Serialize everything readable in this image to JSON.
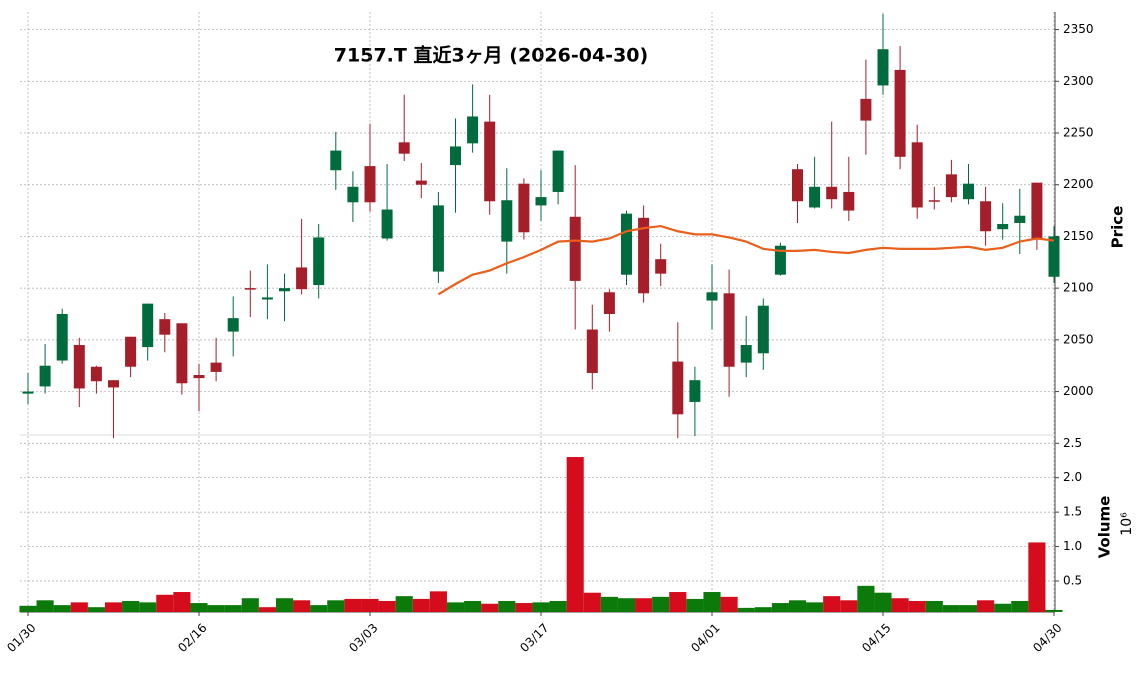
{
  "chart_data": {
    "type": "candlestick",
    "title": "7157.T  直近3ヶ月  (2026-04-30)",
    "ylabel": "Price",
    "volume_label": "Volume",
    "volume_offset": "10⁶",
    "categories": [
      "01/30",
      null,
      null,
      null,
      null,
      null,
      null,
      null,
      null,
      null,
      "02/16",
      null,
      null,
      null,
      null,
      null,
      null,
      null,
      null,
      null,
      "03/03",
      null,
      null,
      null,
      null,
      null,
      null,
      null,
      null,
      null,
      "03/17",
      null,
      null,
      null,
      null,
      null,
      null,
      null,
      null,
      null,
      "04/01",
      null,
      null,
      null,
      null,
      null,
      null,
      null,
      null,
      null,
      "04/15",
      null,
      null,
      null,
      null,
      null,
      null,
      null,
      null,
      null,
      "04/30"
    ],
    "open": [
      1998,
      2005,
      2030,
      2045,
      2024,
      2011,
      2053,
      2043,
      2070,
      2066,
      2016,
      2028,
      2058,
      2100,
      2089,
      2097,
      2120,
      2103,
      2214,
      2183,
      2218,
      2148,
      2241,
      2204,
      2116,
      2219,
      2240,
      2261,
      2145,
      2201,
      2180,
      2193,
      2169,
      2060,
      2096,
      2113,
      2168,
      2128,
      2029,
      1990,
      2088,
      2095,
      2028,
      2037,
      2113,
      2215,
      2178,
      2198,
      2193,
      2283,
      2296,
      2311,
      2241,
      2185,
      2210,
      2186,
      2184,
      2157,
      2163,
      2202,
      2111
    ],
    "high": [
      2018,
      2046,
      2080,
      2052,
      2025,
      2011,
      2053,
      2085,
      2076,
      2066,
      2027,
      2052,
      2092,
      2117,
      2123,
      2114,
      2167,
      2162,
      2251,
      2213,
      2259,
      2220,
      2287,
      2221,
      2193,
      2264,
      2297,
      2287,
      2216,
      2206,
      2214,
      2233,
      2219,
      2084,
      2099,
      2175,
      2180,
      2143,
      2067,
      2024,
      2123,
      2118,
      2073,
      2090,
      2144,
      2220,
      2227,
      2261,
      2227,
      2321,
      2365,
      2334,
      2258,
      2198,
      2224,
      2220,
      2198,
      2182,
      2196,
      2202,
      2160
    ],
    "low": [
      1988,
      1998,
      2027,
      1985,
      1998,
      1955,
      2014,
      2030,
      2038,
      1997,
      1981,
      2010,
      2034,
      2072,
      2070,
      2068,
      2094,
      2090,
      2195,
      2164,
      2174,
      2146,
      2223,
      2187,
      2105,
      2173,
      2231,
      2171,
      2114,
      2147,
      2165,
      2181,
      2060,
      2002,
      2058,
      2103,
      2086,
      2102,
      1955,
      1957,
      2060,
      1995,
      2014,
      2021,
      2112,
      2163,
      2177,
      2177,
      2165,
      2229,
      2287,
      2215,
      2167,
      2176,
      2183,
      2181,
      2141,
      2147,
      2133,
      2137,
      2105
    ],
    "close": [
      2000,
      2025,
      2075,
      2003,
      2010,
      2004,
      2024,
      2085,
      2055,
      2008,
      2013,
      2019,
      2071,
      2100,
      2091,
      2100,
      2099,
      2149,
      2233,
      2198,
      2183,
      2176,
      2230,
      2200,
      2180,
      2237,
      2266,
      2184,
      2185,
      2154,
      2188,
      2233,
      2107,
      2018,
      2075,
      2172,
      2095,
      2114,
      1978,
      2011,
      2096,
      2024,
      2045,
      2083,
      2141,
      2184,
      2198,
      2186,
      2175,
      2262,
      2331,
      2227,
      2178,
      2184,
      2188,
      2201,
      2155,
      2162,
      2170,
      2148,
      2150
    ],
    "volume": [
      0.14,
      0.22,
      0.15,
      0.19,
      0.12,
      0.19,
      0.21,
      0.19,
      0.3,
      0.34,
      0.18,
      0.15,
      0.15,
      0.25,
      0.12,
      0.25,
      0.22,
      0.15,
      0.22,
      0.24,
      0.24,
      0.21,
      0.28,
      0.24,
      0.35,
      0.19,
      0.21,
      0.17,
      0.21,
      0.18,
      0.19,
      0.21,
      2.3,
      0.33,
      0.27,
      0.25,
      0.25,
      0.27,
      0.34,
      0.24,
      0.34,
      0.27,
      0.11,
      0.12,
      0.18,
      0.22,
      0.19,
      0.28,
      0.22,
      0.43,
      0.33,
      0.25,
      0.21,
      0.21,
      0.15,
      0.15,
      0.22,
      0.17,
      0.21,
      1.06,
      0.08
    ],
    "ma": {
      "color": "#e8601c",
      "values": [
        null,
        null,
        null,
        null,
        null,
        null,
        null,
        null,
        null,
        null,
        null,
        null,
        null,
        null,
        null,
        null,
        null,
        null,
        null,
        null,
        null,
        null,
        null,
        null,
        2094,
        2104,
        2113,
        2117,
        2124,
        2130,
        2137,
        2145,
        2146,
        2145,
        2148,
        2155,
        2158,
        2160,
        2155,
        2152,
        2152,
        2149,
        2145,
        2138,
        2136,
        2136,
        2137,
        2135,
        2134,
        2137,
        2139,
        2138,
        2138,
        2138,
        2139,
        2140,
        2137,
        2139,
        2145,
        2148,
        2146
      ]
    },
    "up_color": "#006b3c",
    "down_color": "#a51f2b",
    "volume_up_color": "#0b7a0b",
    "volume_down_color": "#d50c1c",
    "ylim": [
      1958,
      2367
    ],
    "yticks": [
      2000,
      2050,
      2100,
      2150,
      2200,
      2250,
      2300,
      2350
    ],
    "volume_ylim": [
      0.05,
      2.62
    ],
    "volume_yticks": [
      0.5,
      {
        "value": 1.0,
        "label": "1.0"
      },
      1.5,
      {
        "value": 2.0,
        "label": "2.0"
      },
      2.5
    ],
    "grid": true
  }
}
